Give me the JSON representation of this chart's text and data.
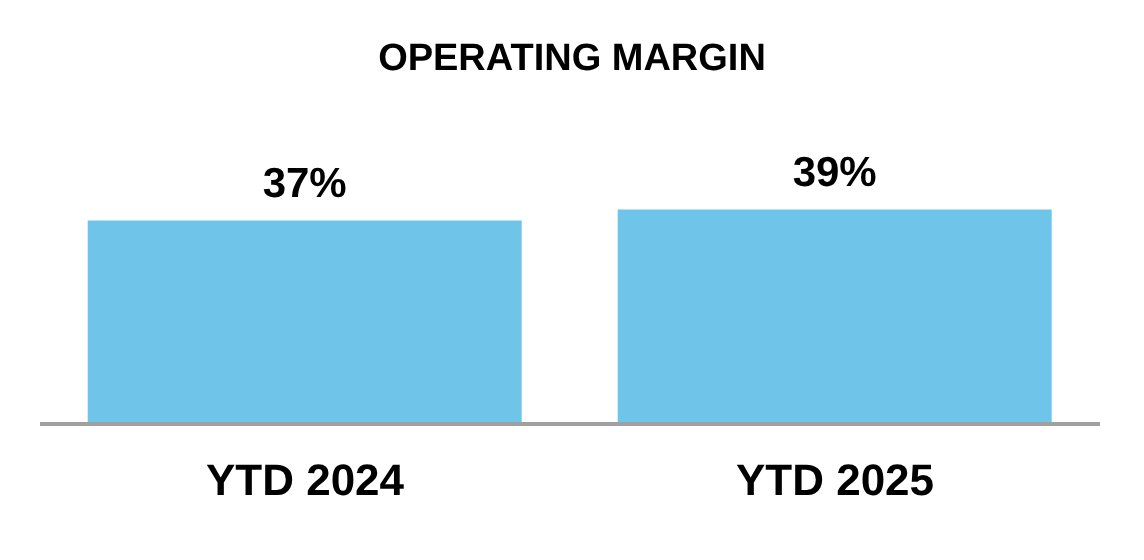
{
  "chart_data": {
    "type": "bar",
    "title": "OPERATING MARGIN",
    "categories": [
      "YTD 2024",
      "YTD 2025"
    ],
    "values": [
      37,
      39
    ],
    "value_labels": [
      "37%",
      "39%"
    ],
    "color": "#6ec5e9",
    "tick_labels": "x"
  }
}
